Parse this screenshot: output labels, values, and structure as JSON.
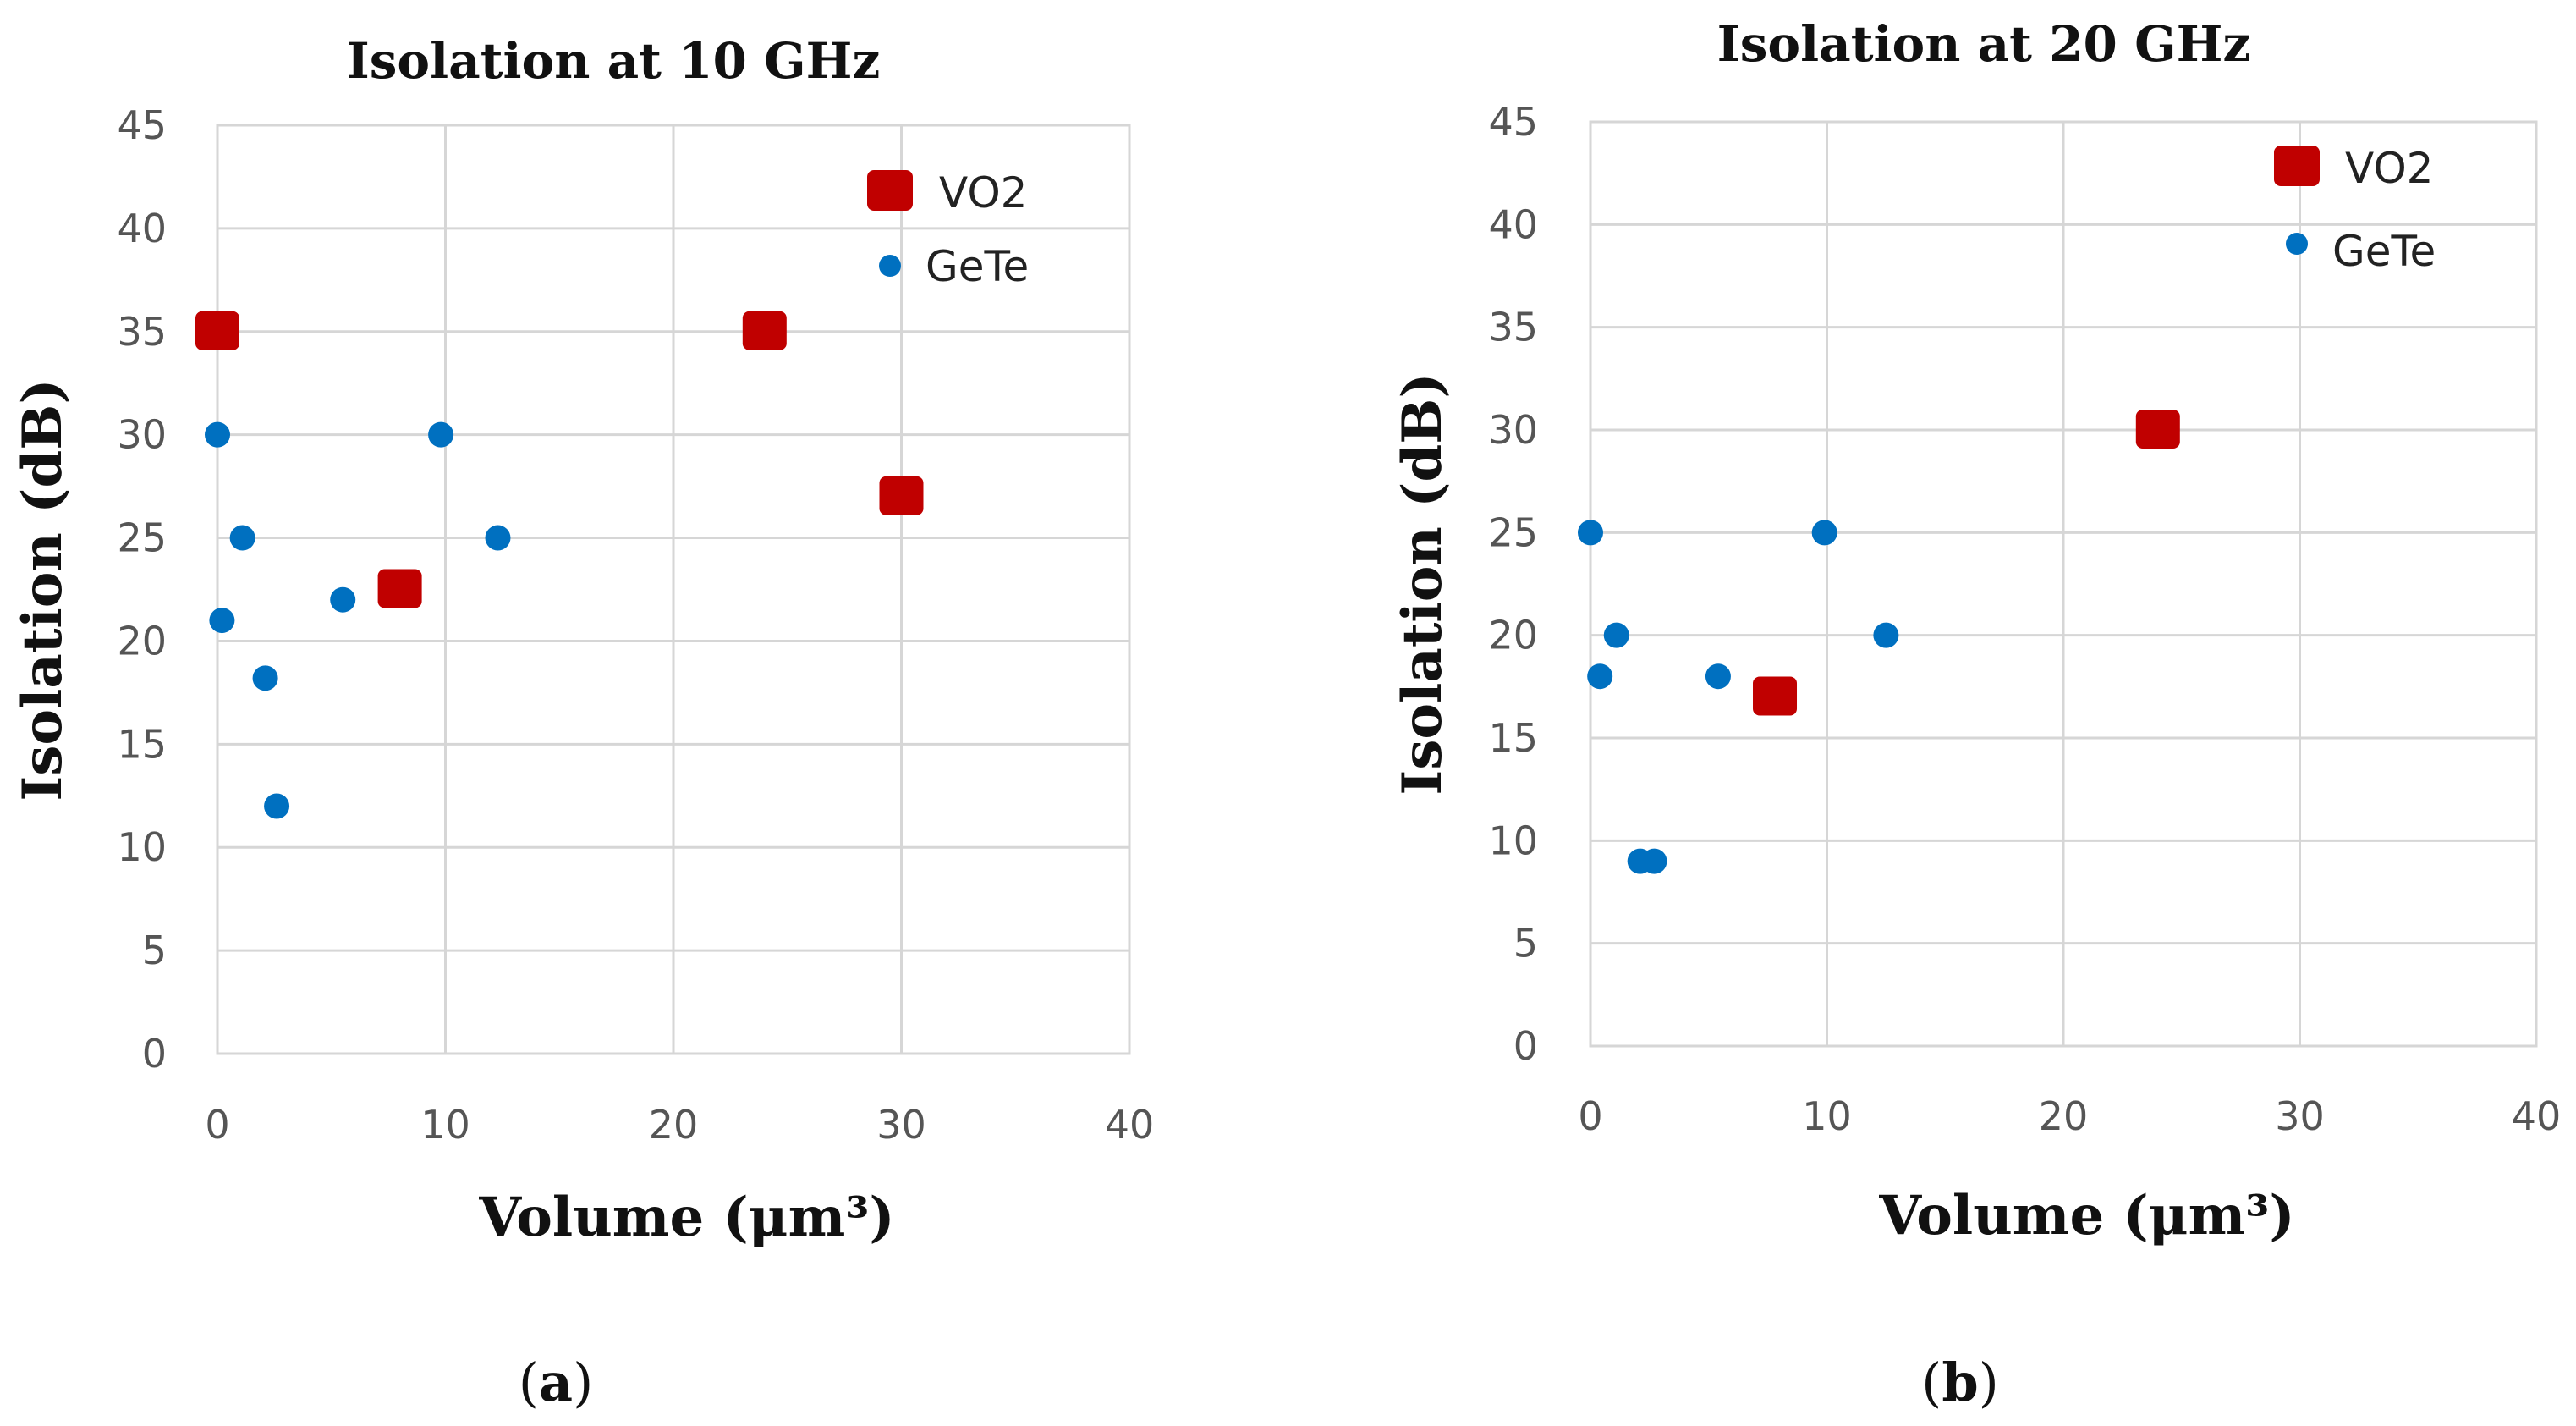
{
  "chart_data": [
    {
      "type": "scatter",
      "title": "Isolation at 10 GHz",
      "xlabel": "Volume (μm³)",
      "ylabel": "Isolation (dB)",
      "xlim": [
        0,
        40
      ],
      "ylim": [
        0,
        45
      ],
      "xticks": [
        "0",
        "10",
        "20",
        "30",
        "40"
      ],
      "yticks": [
        "0",
        "5",
        "10",
        "15",
        "20",
        "25",
        "30",
        "35",
        "40",
        "45"
      ],
      "grid": true,
      "legend_position": "top-right",
      "panel_label": "a",
      "series": [
        {
          "name": "VO2",
          "color": "#c00000",
          "marker": "square",
          "points": [
            {
              "x": 0,
              "y": 35
            },
            {
              "x": 8,
              "y": 22.5
            },
            {
              "x": 24,
              "y": 35
            },
            {
              "x": 30,
              "y": 27
            }
          ]
        },
        {
          "name": "GeTe",
          "color": "#0070c0",
          "marker": "circle",
          "points": [
            {
              "x": 0,
              "y": 30
            },
            {
              "x": 0.2,
              "y": 21
            },
            {
              "x": 1.1,
              "y": 25
            },
            {
              "x": 2.1,
              "y": 18.2
            },
            {
              "x": 2.6,
              "y": 12
            },
            {
              "x": 5.5,
              "y": 22
            },
            {
              "x": 9.8,
              "y": 30
            },
            {
              "x": 12.3,
              "y": 25
            }
          ]
        }
      ]
    },
    {
      "type": "scatter",
      "title": "Isolation at 20 GHz",
      "xlabel": "Volume (μm³)",
      "ylabel": "Isolation (dB)",
      "xlim": [
        0,
        40
      ],
      "ylim": [
        0,
        45
      ],
      "xticks": [
        "0",
        "10",
        "20",
        "30",
        "40"
      ],
      "yticks": [
        "0",
        "5",
        "10",
        "15",
        "20",
        "25",
        "30",
        "35",
        "40",
        "45"
      ],
      "grid": true,
      "legend_position": "top-right",
      "panel_label": "b",
      "series": [
        {
          "name": "VO2",
          "color": "#c00000",
          "marker": "square",
          "points": [
            {
              "x": 7.8,
              "y": 17
            },
            {
              "x": 24,
              "y": 30
            }
          ]
        },
        {
          "name": "GeTe",
          "color": "#0070c0",
          "marker": "circle",
          "points": [
            {
              "x": 0,
              "y": 25
            },
            {
              "x": 0.4,
              "y": 18
            },
            {
              "x": 1.1,
              "y": 20
            },
            {
              "x": 2.1,
              "y": 9
            },
            {
              "x": 2.7,
              "y": 9
            },
            {
              "x": 5.4,
              "y": 18
            },
            {
              "x": 9.9,
              "y": 25
            },
            {
              "x": 12.5,
              "y": 20
            }
          ]
        }
      ]
    }
  ]
}
